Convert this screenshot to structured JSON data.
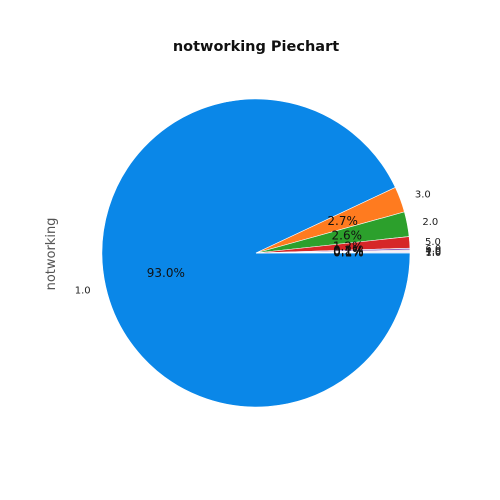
{
  "chart_data": {
    "type": "pie",
    "title": "notworking Piechart",
    "ylabel": "notworking",
    "slices": [
      {
        "label": "1.0",
        "value": 93.0,
        "pct_label": "93.0%",
        "color": "#0a87e8"
      },
      {
        "label": "3.0",
        "value": 2.7,
        "pct_label": "2.7%",
        "color": "#ff7b1f"
      },
      {
        "label": "2.0",
        "value": 2.6,
        "pct_label": "2.6%",
        "color": "#2ca02c"
      },
      {
        "label": "5.0",
        "value": 1.2,
        "pct_label": "1.2%",
        "color": "#d62728"
      },
      {
        "label": "6.0",
        "value": 0.2,
        "pct_label": "0.2%",
        "color": "#9467bd"
      },
      {
        "label": "4.0",
        "value": 0.1,
        "pct_label": "0.1%",
        "color": "#c49c94"
      },
      {
        "label": "1.0",
        "value": 0.1,
        "pct_label": "0.1%",
        "color": "#e5a6d8"
      },
      {
        "label": "1.0",
        "value": 0.1,
        "pct_label": "0.1%",
        "color": "#9fb6e8"
      }
    ],
    "start_angle": 0,
    "direction": "clockwise"
  }
}
